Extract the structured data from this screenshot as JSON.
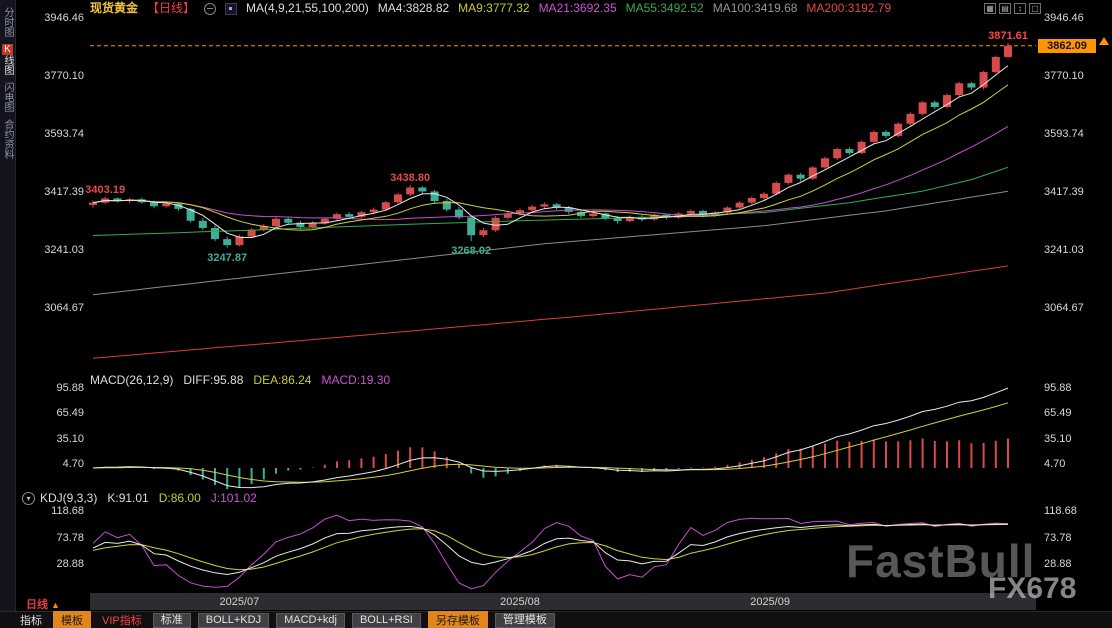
{
  "app": {
    "watermark": "FastBull",
    "watermark2": "FX678"
  },
  "sidebar": {
    "tabs": [
      {
        "label": "分时图"
      },
      {
        "label": "K线图",
        "hot": "K",
        "rest": "线图",
        "active": true
      },
      {
        "label": "闪电图"
      },
      {
        "label": "合约资料"
      }
    ]
  },
  "header": {
    "symbol": "现货黄金",
    "period": "【日线】",
    "ma_group": "MA(4,9,21,55,100,200)",
    "ma4": "MA4:3828.82",
    "ma9": "MA9:3777.32",
    "ma21": "MA21:3692.35",
    "ma55": "MA55:3492.52",
    "ma100": "MA100:3419.68",
    "ma200": "MA200:3192.79"
  },
  "icons": {
    "win1": "▦",
    "win2": "▤",
    "win3": "↕",
    "win4": "▢",
    "panel_toggle": "▾"
  },
  "macd_header": {
    "label": "MACD(26,12,9)",
    "diff": "DIFF:95.88",
    "dea": "DEA:86.24",
    "macd": "MACD:19.30"
  },
  "kdj_header": {
    "label": "KDJ(9,3,3)",
    "k": "K:91.01",
    "d": "D:86.00",
    "j": "J:101.02"
  },
  "bottom": {
    "period": "日线",
    "period_arrow": "▲",
    "tabs": [
      {
        "label": "指标"
      },
      {
        "label": "模板"
      },
      {
        "label": "VIP指标"
      },
      {
        "label": "标准"
      },
      {
        "label": "BOLL+KDJ"
      },
      {
        "label": "MACD+kdj"
      },
      {
        "label": "BOLL+RSI"
      },
      {
        "label": "另存模板"
      },
      {
        "label": "管理模板"
      }
    ]
  },
  "chart_data": {
    "type": "candlestick",
    "symbol": "现货黄金",
    "timeframe": "日线",
    "last_price": 3862.09,
    "last_price_text": "3862.09",
    "ylim_main": [
      3064.67,
      3946.46
    ],
    "main_axis_ticks": [
      3946.46,
      3770.1,
      3593.74,
      3417.39,
      3241.03,
      3064.67
    ],
    "macd_axis_ticks": [
      95.88,
      65.49,
      35.1,
      4.7
    ],
    "kdj_axis_ticks": [
      118.68,
      73.78,
      28.88
    ],
    "x_axis": {
      "labels": [
        {
          "text": "2025/07",
          "index": 12
        },
        {
          "text": "2025/08",
          "index": 35
        },
        {
          "text": "2025/09",
          "index": 55.5
        }
      ]
    },
    "annotations": [
      {
        "text": "3403.19",
        "index": 1,
        "price": 3403.19,
        "pos": "above",
        "color": "#e14a4a"
      },
      {
        "text": "3247.87",
        "index": 11,
        "price": 3247.87,
        "pos": "below",
        "color": "#3fae96"
      },
      {
        "text": "3438.80",
        "index": 26,
        "price": 3438.8,
        "pos": "above",
        "color": "#e14a4a"
      },
      {
        "text": "3268.02",
        "index": 31,
        "price": 3268.02,
        "pos": "below",
        "color": "#3fae96"
      },
      {
        "text": "3871.61",
        "index": 75,
        "price": 3871.61,
        "pos": "above",
        "color": "#ff4444"
      }
    ],
    "macd": {
      "params": "26,12,9",
      "diff": 95.88,
      "dea": 86.24,
      "macd": 19.3
    },
    "kdj": {
      "params": "9,3,3",
      "k": 91.01,
      "d": 86.0,
      "j": 101.02
    },
    "colors": {
      "up": "#d84b4b",
      "down": "#3fae96",
      "ma4": "#e8e8e8",
      "ma9": "#cfd232",
      "ma21": "#c44fd0",
      "ma55": "#2fae54",
      "ma100": "#8c8c8c",
      "ma200": "#dd3c3c",
      "last_price_line": "#ff9500"
    },
    "overlays": {
      "ma55_anchors": [
        [
          0,
          3285
        ],
        [
          12,
          3300
        ],
        [
          25,
          3318
        ],
        [
          35,
          3330
        ],
        [
          45,
          3340
        ],
        [
          55,
          3355
        ],
        [
          62,
          3385
        ],
        [
          68,
          3420
        ],
        [
          72,
          3455
        ],
        [
          75,
          3492.52
        ]
      ],
      "ma100_anchors": [
        [
          0,
          3105
        ],
        [
          15,
          3168
        ],
        [
          37,
          3260
        ],
        [
          55,
          3315
        ],
        [
          65,
          3360
        ],
        [
          75,
          3419.68
        ]
      ],
      "ma200_anchors": [
        [
          0,
          2912
        ],
        [
          20,
          2975
        ],
        [
          40,
          3040
        ],
        [
          60,
          3110
        ],
        [
          75,
          3192.79
        ]
      ]
    },
    "candles": [
      [
        3378,
        3392,
        3370,
        3385
      ],
      [
        3385,
        3403.19,
        3380,
        3398
      ],
      [
        3398,
        3401,
        3386,
        3390
      ],
      [
        3390,
        3399,
        3384,
        3395
      ],
      [
        3395,
        3400,
        3382,
        3386
      ],
      [
        3386,
        3391,
        3368,
        3374
      ],
      [
        3374,
        3386,
        3370,
        3382
      ],
      [
        3382,
        3385,
        3360,
        3366
      ],
      [
        3366,
        3370,
        3324,
        3330
      ],
      [
        3330,
        3338,
        3302,
        3308
      ],
      [
        3308,
        3315,
        3268,
        3274
      ],
      [
        3274,
        3282,
        3247.87,
        3256
      ],
      [
        3256,
        3288,
        3252,
        3282
      ],
      [
        3282,
        3308,
        3278,
        3303
      ],
      [
        3303,
        3320,
        3298,
        3314
      ],
      [
        3314,
        3340,
        3310,
        3336
      ],
      [
        3336,
        3342,
        3318,
        3324
      ],
      [
        3324,
        3330,
        3304,
        3311
      ],
      [
        3311,
        3328,
        3306,
        3322
      ],
      [
        3322,
        3340,
        3318,
        3336
      ],
      [
        3336,
        3355,
        3331,
        3350
      ],
      [
        3350,
        3356,
        3336,
        3342
      ],
      [
        3342,
        3360,
        3338,
        3356
      ],
      [
        3356,
        3370,
        3350,
        3364
      ],
      [
        3364,
        3390,
        3360,
        3386
      ],
      [
        3386,
        3415,
        3382,
        3410
      ],
      [
        3410,
        3438.8,
        3405,
        3431
      ],
      [
        3431,
        3435,
        3412,
        3419
      ],
      [
        3419,
        3424,
        3384,
        3390
      ],
      [
        3390,
        3396,
        3358,
        3364
      ],
      [
        3364,
        3372,
        3334,
        3340
      ],
      [
        3340,
        3346,
        3268.02,
        3286
      ],
      [
        3286,
        3308,
        3280,
        3301
      ],
      [
        3301,
        3345,
        3296,
        3339
      ],
      [
        3339,
        3358,
        3334,
        3352
      ],
      [
        3352,
        3368,
        3346,
        3362
      ],
      [
        3362,
        3378,
        3356,
        3373
      ],
      [
        3373,
        3386,
        3366,
        3380
      ],
      [
        3380,
        3384,
        3364,
        3371
      ],
      [
        3371,
        3375,
        3350,
        3357
      ],
      [
        3357,
        3362,
        3338,
        3344
      ],
      [
        3344,
        3356,
        3340,
        3352
      ],
      [
        3352,
        3355,
        3332,
        3338
      ],
      [
        3338,
        3344,
        3322,
        3329
      ],
      [
        3329,
        3346,
        3325,
        3342
      ],
      [
        3342,
        3347,
        3328,
        3334
      ],
      [
        3334,
        3352,
        3330,
        3348
      ],
      [
        3348,
        3352,
        3334,
        3340
      ],
      [
        3340,
        3356,
        3336,
        3352
      ],
      [
        3352,
        3364,
        3346,
        3360
      ],
      [
        3360,
        3363,
        3340,
        3346
      ],
      [
        3346,
        3360,
        3342,
        3355
      ],
      [
        3355,
        3374,
        3350,
        3370
      ],
      [
        3370,
        3390,
        3366,
        3385
      ],
      [
        3385,
        3404,
        3380,
        3399
      ],
      [
        3399,
        3418,
        3394,
        3412
      ],
      [
        3412,
        3450,
        3408,
        3445
      ],
      [
        3445,
        3474,
        3440,
        3470
      ],
      [
        3470,
        3475,
        3450,
        3458
      ],
      [
        3458,
        3496,
        3454,
        3492
      ],
      [
        3492,
        3525,
        3488,
        3520
      ],
      [
        3520,
        3552,
        3515,
        3548
      ],
      [
        3548,
        3553,
        3530,
        3536
      ],
      [
        3536,
        3574,
        3532,
        3570
      ],
      [
        3570,
        3604,
        3566,
        3600
      ],
      [
        3600,
        3606,
        3582,
        3588
      ],
      [
        3588,
        3630,
        3584,
        3625
      ],
      [
        3625,
        3660,
        3620,
        3655
      ],
      [
        3655,
        3694,
        3650,
        3690
      ],
      [
        3690,
        3695,
        3670,
        3676
      ],
      [
        3676,
        3716,
        3672,
        3712
      ],
      [
        3712,
        3752,
        3708,
        3748
      ],
      [
        3748,
        3753,
        3728,
        3735
      ],
      [
        3735,
        3786,
        3730,
        3782
      ],
      [
        3782,
        3832,
        3778,
        3828
      ],
      [
        3828,
        3871.61,
        3824,
        3862.09
      ]
    ]
  }
}
